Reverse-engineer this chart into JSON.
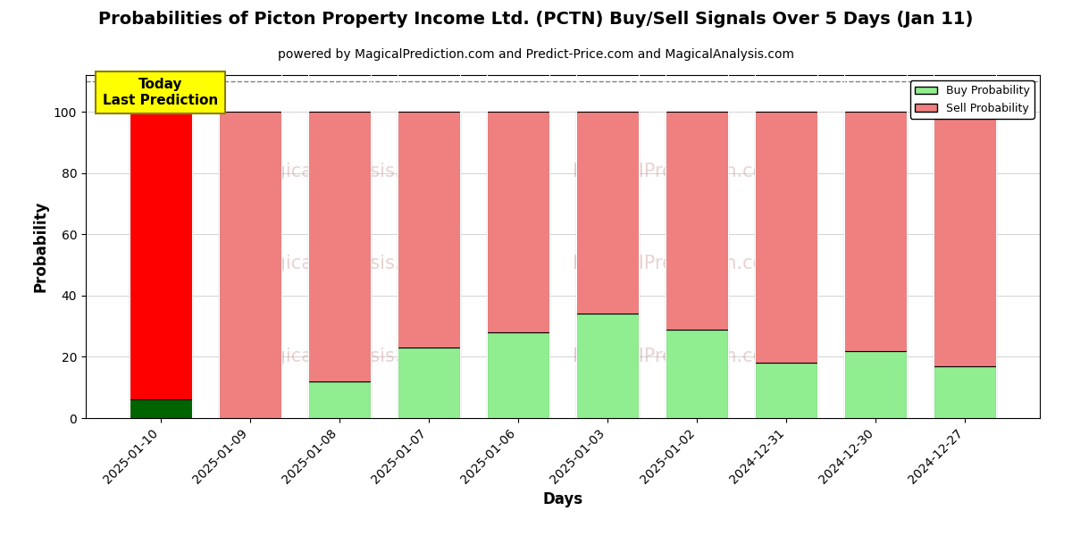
{
  "title": "Probabilities of Picton Property Income Ltd. (PCTN) Buy/Sell Signals Over 5 Days (Jan 11)",
  "subtitle": "powered by MagicalPrediction.com and Predict-Price.com and MagicalAnalysis.com",
  "xlabel": "Days",
  "ylabel": "Probability",
  "categories": [
    "2025-01-10",
    "2025-01-09",
    "2025-01-08",
    "2025-01-07",
    "2025-01-06",
    "2025-01-03",
    "2025-01-02",
    "2024-12-31",
    "2024-12-30",
    "2024-12-27"
  ],
  "buy_values": [
    6,
    0,
    12,
    23,
    28,
    34,
    29,
    18,
    22,
    17
  ],
  "sell_values": [
    94,
    100,
    88,
    77,
    72,
    66,
    71,
    82,
    78,
    83
  ],
  "today_buy_color": "#006400",
  "today_sell_color": "#ff0000",
  "other_buy_color": "#90ee90",
  "other_sell_color": "#f08080",
  "ylim": [
    0,
    112
  ],
  "dashed_line_y": 110,
  "today_label_text": "Today\nLast Prediction",
  "today_label_bg": "#ffff00",
  "legend_buy_label": "Buy Probability",
  "legend_sell_label": "Sell Probability",
  "title_fontsize": 14,
  "subtitle_fontsize": 10,
  "axis_label_fontsize": 12,
  "tick_fontsize": 10,
  "bar_width": 0.7,
  "bar_edge_color": "#000000",
  "bar_edge_width": 0.8
}
